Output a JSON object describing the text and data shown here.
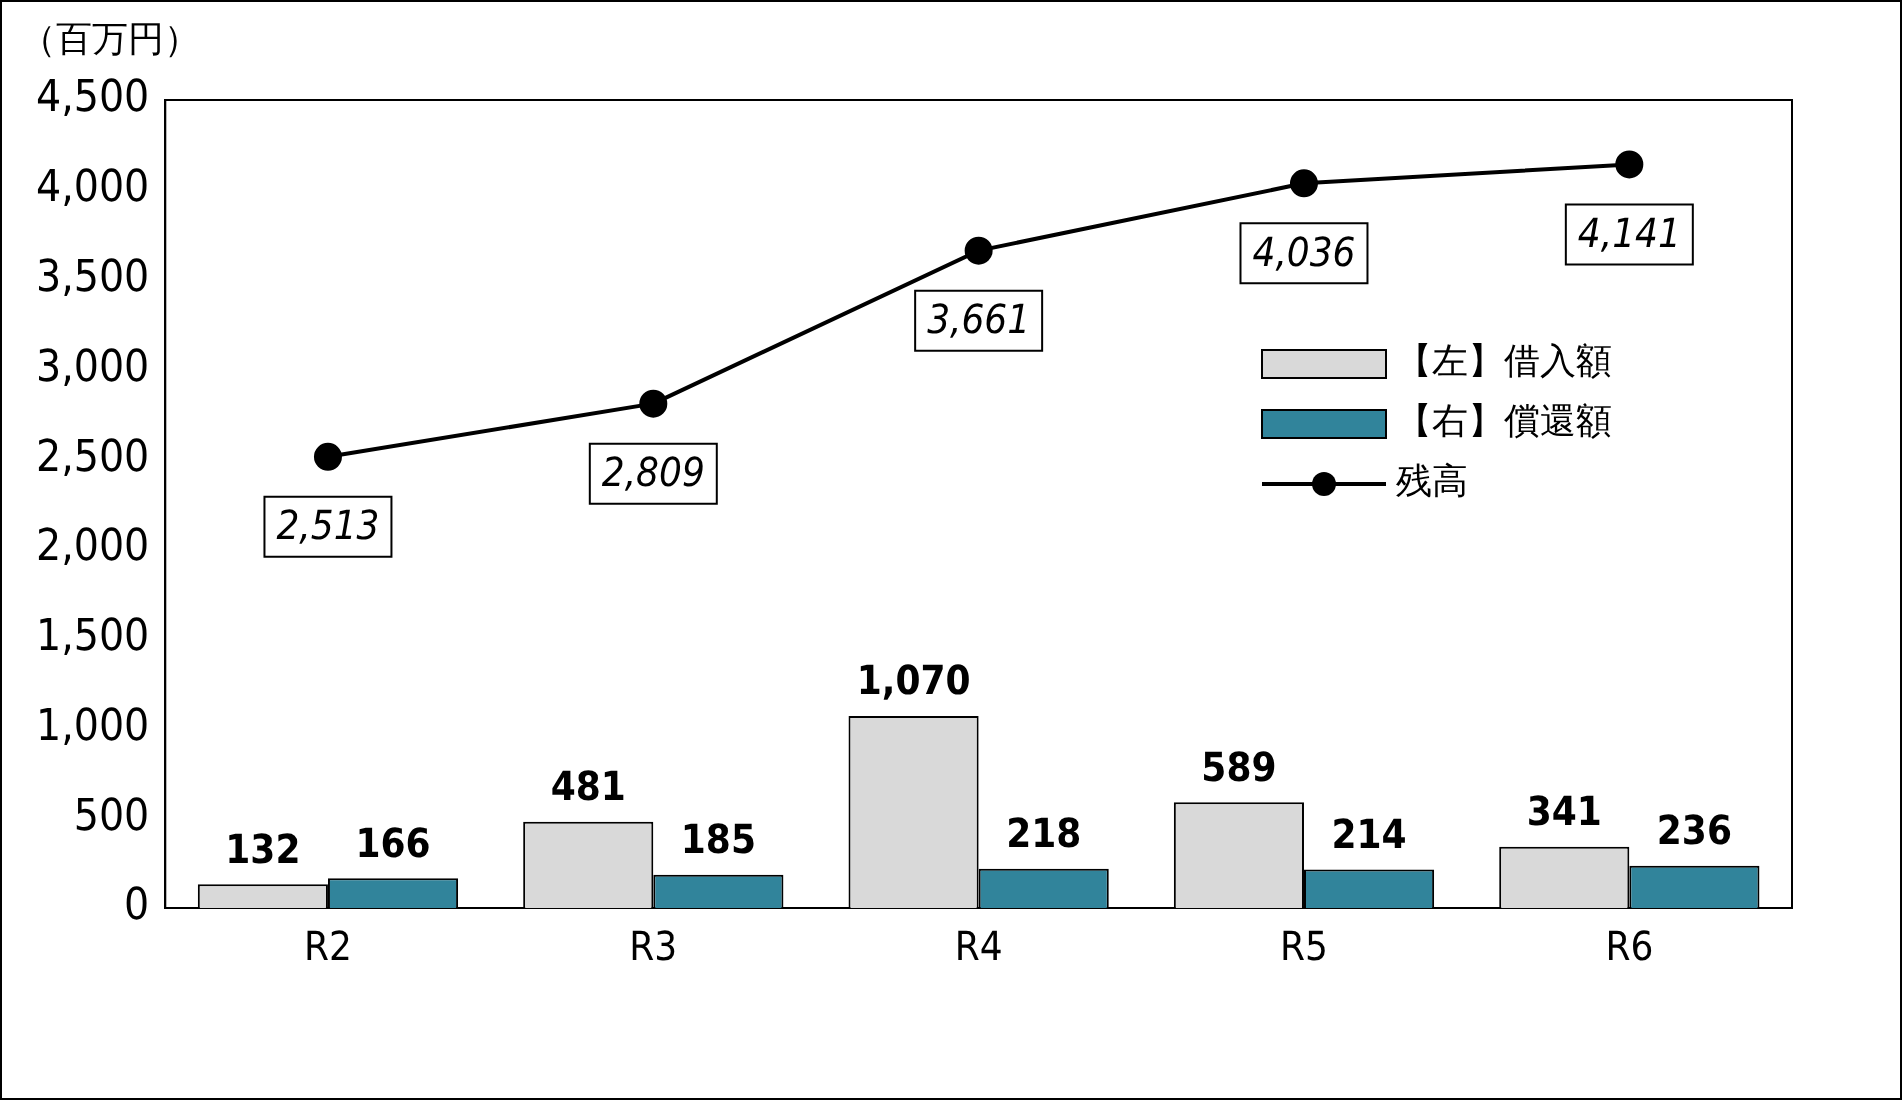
{
  "chart_data": {
    "type": "bar",
    "ylabel": "（百万円）",
    "categories": [
      "R2",
      "R3",
      "R4",
      "R5",
      "R6"
    ],
    "series": [
      {
        "name": "【左】借入額",
        "color": "#d9d9d9",
        "values": [
          132,
          481,
          1070,
          589,
          341
        ],
        "value_labels": [
          "132",
          "481",
          "1,070",
          "589",
          "341"
        ]
      },
      {
        "name": "【右】償還額",
        "color": "#31849b",
        "values": [
          166,
          185,
          218,
          214,
          236
        ],
        "value_labels": [
          "166",
          "185",
          "218",
          "214",
          "236"
        ]
      },
      {
        "name": "残高",
        "type": "line",
        "color": "#000000",
        "values": [
          2513,
          2809,
          3661,
          4036,
          4141
        ],
        "value_labels": [
          "2,513",
          "2,809",
          "3,661",
          "4,036",
          "4,141"
        ]
      }
    ],
    "ylim": [
      0,
      4500
    ],
    "yticks": [
      0,
      500,
      {
        "value": 1000,
        "label": "1,000"
      },
      {
        "value": 1500,
        "label": "1,500"
      },
      {
        "value": 2000,
        "label": "2,000"
      },
      {
        "value": 2500,
        "label": "2,500"
      },
      {
        "value": 3000,
        "label": "3,000"
      },
      {
        "value": 3500,
        "label": "3,500"
      },
      {
        "value": 4000,
        "label": "4,000"
      },
      {
        "value": 4500,
        "label": "4,500"
      }
    ],
    "grid": false,
    "legend": "right",
    "marker": "circle"
  }
}
